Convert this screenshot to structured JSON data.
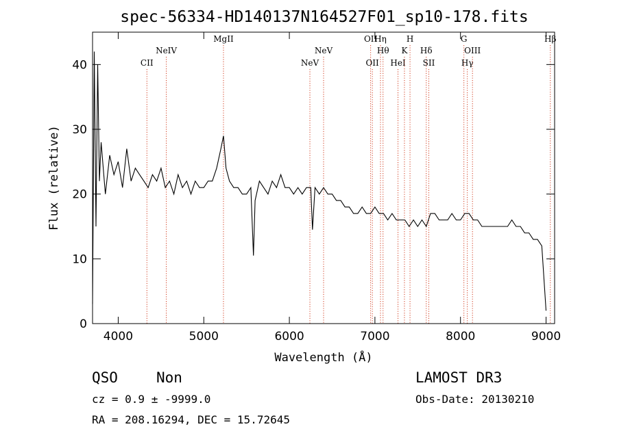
{
  "chart_data": {
    "type": "line",
    "title": "spec-56334-HD140137N164527F01_sp10-178.fits",
    "xlabel": "Wavelength (Å)",
    "ylabel": "Flux (relative)",
    "xlim": [
      3700,
      9100
    ],
    "ylim": [
      0,
      45
    ],
    "x_ticks": [
      4000,
      5000,
      6000,
      7000,
      8000,
      9000
    ],
    "y_ticks": [
      0,
      10,
      20,
      30,
      40
    ],
    "grid": false,
    "series": [
      {
        "x": [
          3700,
          3720,
          3740,
          3760,
          3780,
          3800,
          3850,
          3900,
          3950,
          4000,
          4050,
          4100,
          4150,
          4200,
          4250,
          4300,
          4350,
          4400,
          4450,
          4500,
          4550,
          4600,
          4650,
          4700,
          4750,
          4800,
          4850,
          4900,
          4950,
          5000,
          5050,
          5100,
          5150,
          5200,
          5230,
          5260,
          5300,
          5350,
          5400,
          5450,
          5500,
          5550,
          5580,
          5600,
          5650,
          5700,
          5750,
          5800,
          5850,
          5900,
          5950,
          6000,
          6050,
          6100,
          6150,
          6200,
          6250,
          6270,
          6300,
          6350,
          6400,
          6450,
          6500,
          6550,
          6600,
          6650,
          6700,
          6750,
          6800,
          6850,
          6900,
          6950,
          7000,
          7050,
          7100,
          7150,
          7200,
          7250,
          7300,
          7350,
          7400,
          7450,
          7500,
          7550,
          7600,
          7650,
          7700,
          7750,
          7800,
          7850,
          7900,
          7950,
          8000,
          8050,
          8100,
          8150,
          8200,
          8250,
          8300,
          8350,
          8400,
          8450,
          8500,
          8550,
          8600,
          8650,
          8700,
          8750,
          8800,
          8850,
          8900,
          8950,
          9000
        ],
        "y": [
          3,
          42,
          15,
          40,
          22,
          28,
          20,
          26,
          23,
          25,
          21,
          27,
          22,
          24,
          23,
          22,
          21,
          23,
          22,
          24,
          21,
          22,
          20,
          23,
          21,
          22,
          20,
          22,
          21,
          21,
          22,
          22,
          24,
          27,
          29,
          24,
          22,
          21,
          21,
          20,
          20,
          21,
          10.5,
          19,
          22,
          21,
          20,
          22,
          21,
          23,
          21,
          21,
          20,
          21,
          20,
          21,
          21,
          14.5,
          21,
          20,
          21,
          20,
          20,
          19,
          19,
          18,
          18,
          17,
          17,
          18,
          17,
          17,
          18,
          17,
          17,
          16,
          17,
          16,
          16,
          16,
          15,
          16,
          15,
          16,
          15,
          17,
          17,
          16,
          16,
          16,
          17,
          16,
          16,
          17,
          17,
          16,
          16,
          15,
          15,
          15,
          15,
          15,
          15,
          15,
          16,
          15,
          15,
          14,
          14,
          13,
          13,
          12,
          2
        ]
      }
    ],
    "line_markers": [
      {
        "label": "CII",
        "x": 4335,
        "row": 3
      },
      {
        "label": "NeIV",
        "x": 4562,
        "row": 2
      },
      {
        "label": "MgII",
        "x": 5230,
        "row": 1
      },
      {
        "label": "NeV",
        "x": 6240,
        "row": 3
      },
      {
        "label": "NeV",
        "x": 6400,
        "row": 2
      },
      {
        "label": "OII",
        "x": 6950,
        "row": 1
      },
      {
        "label": "OII",
        "x": 6970,
        "row": 3
      },
      {
        "label": "Hη",
        "x": 7065,
        "row": 1
      },
      {
        "label": "Hθ",
        "x": 7095,
        "row": 2
      },
      {
        "label": "HeI",
        "x": 7270,
        "row": 3
      },
      {
        "label": "K",
        "x": 7345,
        "row": 2
      },
      {
        "label": "H",
        "x": 7410,
        "row": 1
      },
      {
        "label": "Hδ",
        "x": 7600,
        "row": 2
      },
      {
        "label": "SII",
        "x": 7630,
        "row": 3
      },
      {
        "label": "G",
        "x": 8040,
        "row": 1
      },
      {
        "label": "Hγ",
        "x": 8080,
        "row": 3
      },
      {
        "label": "OIII",
        "x": 8140,
        "row": 2
      },
      {
        "label": "Hβ",
        "x": 9050,
        "row": 1
      }
    ]
  },
  "info": {
    "class": "QSO",
    "subclass": "Non",
    "survey": "LAMOST DR3",
    "redshift": "cz = 0.9 ± -9999.0",
    "obs_date": "Obs-Date: 20130210",
    "coords": "RA = 208.16294, DEC =  15.72645"
  }
}
